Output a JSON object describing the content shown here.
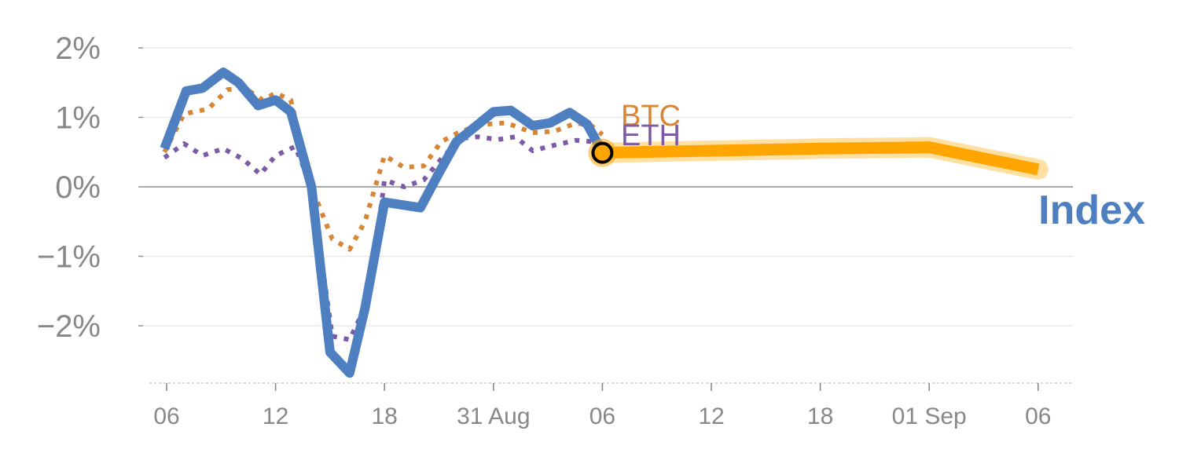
{
  "chart_data": {
    "type": "line",
    "ylim": [
      -2.8,
      2.2
    ],
    "xlim": [
      -0.2,
      8.3
    ],
    "grid": true,
    "y_ticks": [
      {
        "value": 2,
        "label": "2%"
      },
      {
        "value": 1,
        "label": "1%"
      },
      {
        "value": 0,
        "label": "0%"
      },
      {
        "value": -1,
        "label": "−1%"
      },
      {
        "value": -2,
        "label": "−2%"
      }
    ],
    "x_ticks": [
      {
        "value": 0,
        "label": "06"
      },
      {
        "value": 1,
        "label": "12"
      },
      {
        "value": 2,
        "label": "18"
      },
      {
        "value": 3,
        "label": "31 Aug"
      },
      {
        "value": 4,
        "label": "06"
      },
      {
        "value": 5,
        "label": "12"
      },
      {
        "value": 6,
        "label": "18"
      },
      {
        "value": 7,
        "label": "01 Sep"
      },
      {
        "value": 8,
        "label": "06"
      }
    ],
    "series": [
      {
        "name": "Index",
        "color": "#4e7fc0",
        "style": "solid",
        "x": [
          -0.02,
          0.18,
          0.33,
          0.52,
          0.66,
          0.84,
          1.0,
          1.14,
          1.33,
          1.5,
          1.68,
          1.82,
          2.0,
          2.33,
          2.5,
          2.66,
          2.86,
          3.0,
          3.16,
          3.36,
          3.52,
          3.7,
          3.86,
          4.0
        ],
        "y": [
          0.55,
          1.38,
          1.42,
          1.65,
          1.5,
          1.17,
          1.25,
          1.08,
          0.0,
          -2.38,
          -2.68,
          -1.75,
          -0.22,
          -0.3,
          0.2,
          0.65,
          0.9,
          1.08,
          1.1,
          0.88,
          0.92,
          1.07,
          0.9,
          0.5
        ]
      },
      {
        "name": "BTC",
        "color": "#d98536",
        "style": "dotted",
        "x": [
          -0.02,
          0.16,
          0.38,
          0.56,
          0.72,
          0.88,
          1.0,
          1.14,
          1.33,
          1.52,
          1.68,
          1.82,
          2.0,
          2.18,
          2.36,
          2.52,
          2.7,
          2.92,
          3.12,
          3.36,
          3.56,
          3.76,
          3.9,
          4.0
        ],
        "y": [
          0.5,
          1.05,
          1.12,
          1.4,
          1.42,
          1.25,
          1.35,
          1.25,
          0.0,
          -0.75,
          -0.9,
          -0.5,
          0.45,
          0.28,
          0.3,
          0.65,
          0.8,
          0.9,
          0.92,
          0.78,
          0.8,
          0.92,
          0.88,
          0.75
        ]
      },
      {
        "name": "ETH",
        "color": "#7b5aa6",
        "style": "dotted",
        "x": [
          -0.02,
          0.16,
          0.33,
          0.52,
          0.7,
          0.86,
          1.0,
          1.18,
          1.33,
          1.52,
          1.68,
          1.86,
          2.0,
          2.18,
          2.36,
          2.52,
          2.7,
          2.86,
          3.04,
          3.2,
          3.36,
          3.56,
          3.76,
          3.92,
          4.0
        ],
        "y": [
          0.42,
          0.62,
          0.45,
          0.55,
          0.4,
          0.18,
          0.45,
          0.58,
          0.0,
          -2.15,
          -2.2,
          -1.6,
          0.1,
          0.0,
          0.1,
          0.4,
          0.7,
          0.72,
          0.68,
          0.72,
          0.52,
          0.6,
          0.67,
          0.65,
          0.55
        ]
      },
      {
        "name": "Index",
        "color": "#ffa500",
        "style": "forecast",
        "x": [
          4.0,
          5.0,
          6.0,
          7.0,
          8.0
        ],
        "y": [
          0.49,
          0.52,
          0.55,
          0.57,
          0.25
        ]
      }
    ],
    "marker": {
      "x": 4.0,
      "y": 0.49
    }
  }
}
